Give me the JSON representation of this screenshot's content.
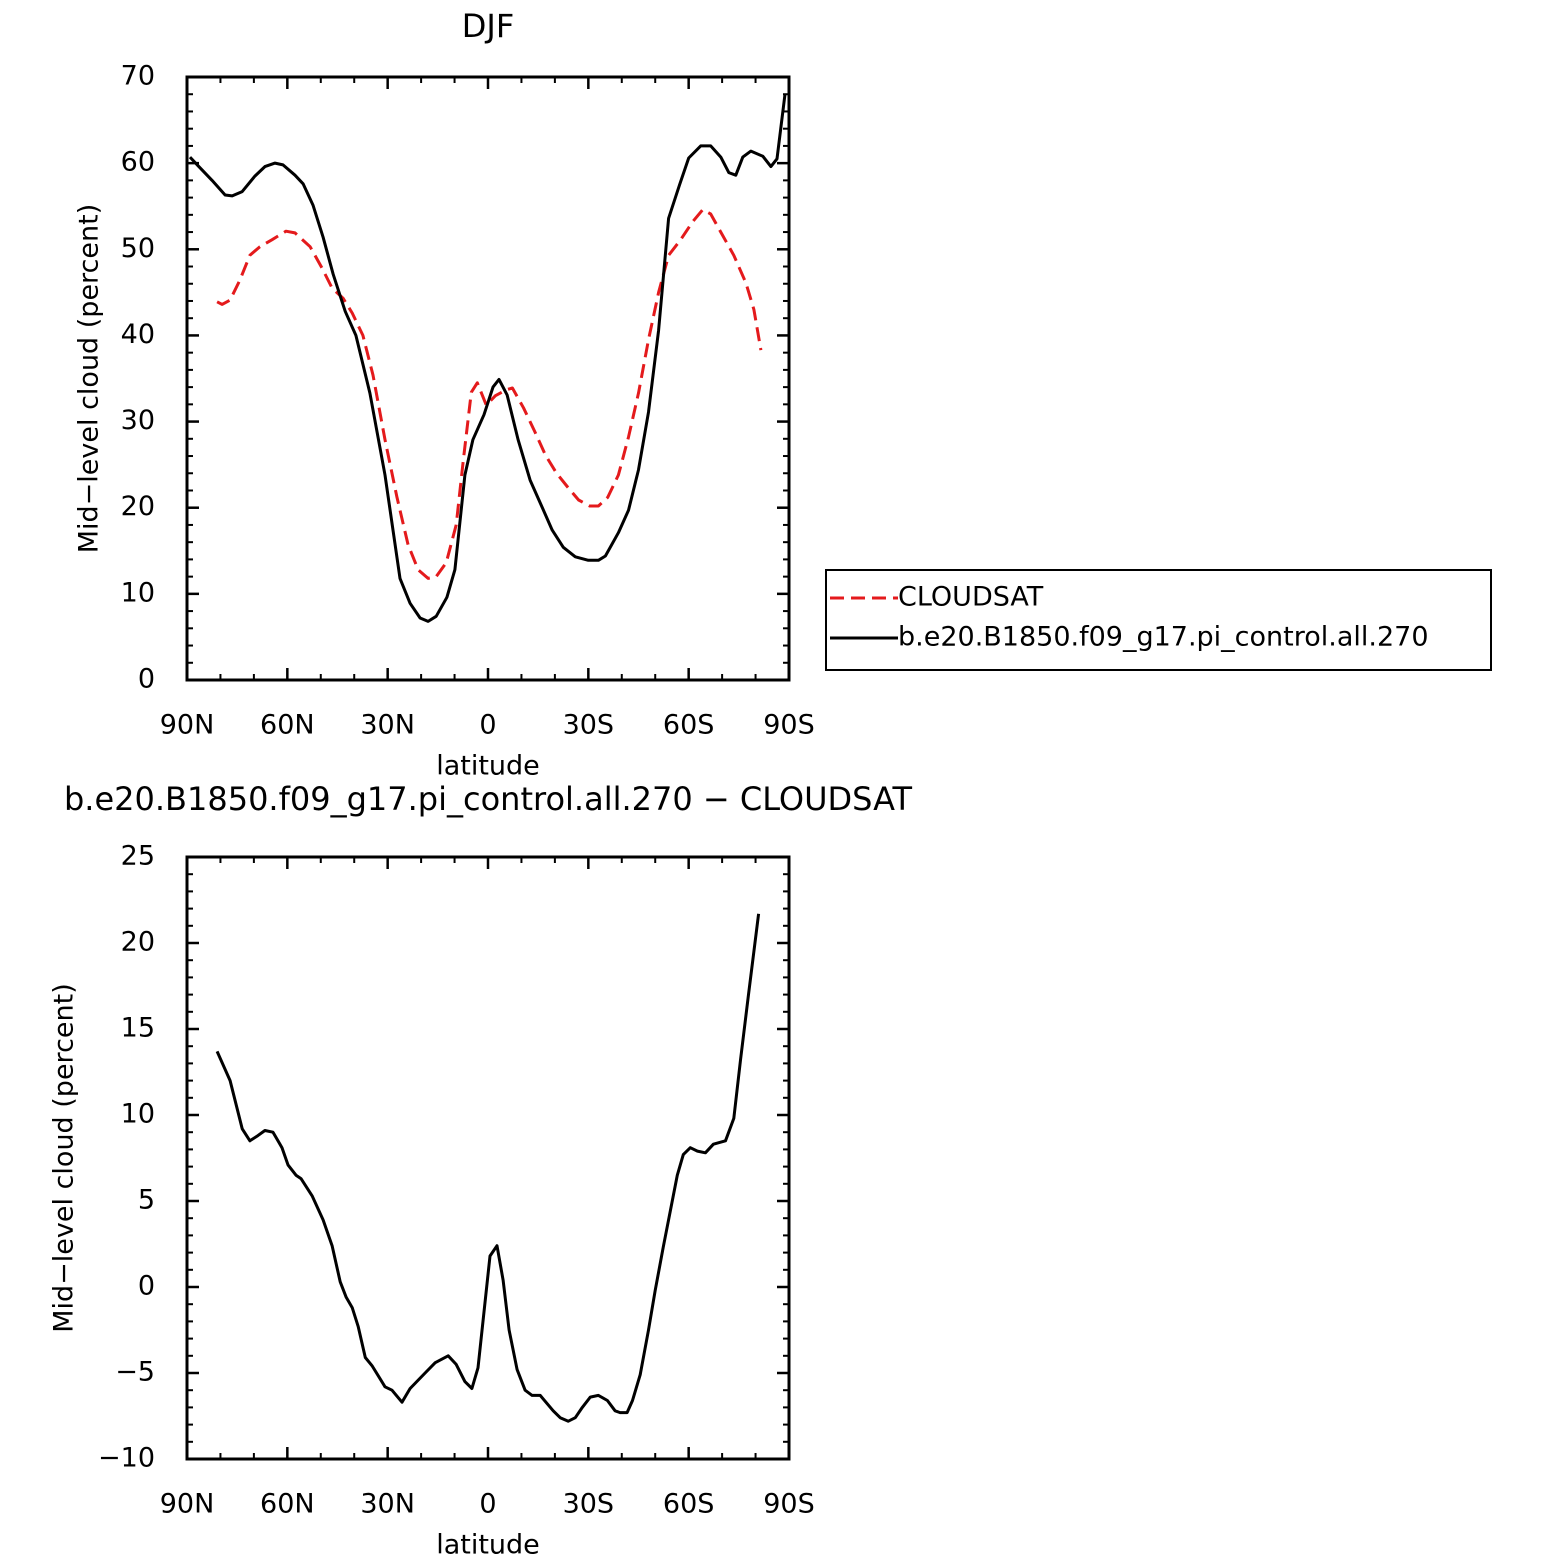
{
  "chart_data": [
    {
      "type": "line",
      "title": "DJF",
      "xlabel": "latitude",
      "ylabel": "Mid−level cloud (percent)",
      "xlim": [
        90,
        -90
      ],
      "xticks": [
        {
          "value": 90,
          "label": "90N"
        },
        {
          "value": 60,
          "label": "60N"
        },
        {
          "value": 30,
          "label": "30N"
        },
        0,
        {
          "value": -30,
          "label": "30S"
        },
        {
          "value": -60,
          "label": "60S"
        },
        {
          "value": -90,
          "label": "90S"
        }
      ],
      "xminorticks": [
        80,
        70,
        50,
        40,
        20,
        10,
        -10,
        -20,
        -40,
        -50,
        -70,
        -80
      ],
      "ylim": [
        0,
        70
      ],
      "yticks": [
        0,
        10,
        20,
        30,
        40,
        50,
        60,
        70
      ],
      "yminorticks": [
        2,
        4,
        6,
        8,
        12,
        14,
        16,
        18,
        22,
        24,
        26,
        28,
        32,
        34,
        36,
        38,
        42,
        44,
        46,
        48,
        52,
        54,
        56,
        58,
        62,
        64,
        66,
        68
      ],
      "legend": true,
      "series": [
        {
          "name": "CLOUDSAT",
          "color": "#e41a1c",
          "dash": true,
          "x": [
            81.0,
            79.5,
            77.1,
            74.2,
            71.2,
            68.2,
            64.6,
            60.4,
            57.7,
            53.2,
            49.6,
            46.6,
            43.3,
            40.6,
            37.4,
            34.4,
            30.8,
            27.2,
            23.9,
            20.9,
            17.9,
            15.5,
            12.5,
            9.5,
            7.4,
            5.0,
            3.2,
            0.5,
            -2.2,
            -5.5,
            -7.3,
            -10.6,
            -13.9,
            -17.2,
            -20.5,
            -23.8,
            -27.1,
            -30.4,
            -33.0,
            -35.8,
            -39.0,
            -42.0,
            -45.0,
            -48.0,
            -51.0,
            -54.0,
            -57.6,
            -61.2,
            -64.2,
            -66.6,
            -69.6,
            -73.5,
            -77.1,
            -79.5,
            -81.6
          ],
          "values": [
            43.9,
            43.6,
            44.1,
            46.4,
            49.3,
            50.3,
            51.1,
            52.1,
            51.9,
            50.3,
            47.8,
            45.5,
            44.3,
            42.6,
            40.0,
            35.4,
            27.9,
            21.2,
            15.7,
            12.8,
            11.8,
            12.0,
            13.6,
            18.0,
            25.5,
            33.4,
            34.5,
            31.9,
            33.0,
            33.7,
            33.9,
            31.6,
            28.9,
            26.1,
            24.0,
            22.4,
            20.9,
            20.2,
            20.2,
            21.2,
            23.8,
            28.2,
            33.3,
            39.5,
            45.0,
            49.3,
            51.1,
            53.2,
            54.6,
            54.1,
            52.0,
            49.3,
            46.1,
            43.0,
            38.3
          ]
        },
        {
          "name": "b.e20.B1850.f09_g17.pi_control.all.270",
          "color": "#000000",
          "dash": false,
          "x": [
            89.1,
            86.7,
            82.5,
            78.6,
            76.5,
            73.5,
            69.7,
            66.7,
            63.7,
            61.3,
            57.7,
            55.3,
            52.3,
            49.3,
            46.3,
            42.7,
            39.5,
            35.3,
            30.8,
            26.3,
            23.3,
            20.3,
            17.9,
            15.5,
            12.3,
            9.9,
            6.9,
            4.5,
            1.2,
            -1.5,
            -3.3,
            -5.7,
            -9.0,
            -12.6,
            -15.9,
            -19.2,
            -22.5,
            -26.1,
            -30.0,
            -33.0,
            -35.1,
            -39.0,
            -42.0,
            -45.0,
            -48.0,
            -51.0,
            -54.0,
            -57.3,
            -60.0,
            -63.6,
            -66.6,
            -69.6,
            -72.0,
            -74.1,
            -76.2,
            -78.6,
            -82.2,
            -84.6,
            -86.4,
            -88.8
          ],
          "values": [
            60.7,
            59.7,
            58.0,
            56.3,
            56.2,
            56.7,
            58.5,
            59.6,
            60.0,
            59.8,
            58.6,
            57.6,
            55.1,
            51.4,
            47.1,
            42.8,
            40.0,
            33.3,
            23.8,
            11.8,
            8.9,
            7.2,
            6.8,
            7.4,
            9.6,
            12.8,
            23.8,
            27.9,
            30.8,
            34.0,
            34.9,
            33.1,
            27.9,
            23.2,
            20.3,
            17.4,
            15.4,
            14.3,
            13.9,
            13.9,
            14.4,
            17.1,
            19.7,
            24.4,
            31.1,
            40.6,
            53.6,
            57.5,
            60.6,
            62.0,
            62.0,
            60.7,
            58.9,
            58.6,
            60.7,
            61.4,
            60.8,
            59.6,
            60.5,
            68.0
          ]
        }
      ]
    },
    {
      "type": "line",
      "title": "b.e20.B1850.f09_g17.pi_control.all.270 − CLOUDSAT",
      "xlabel": "latitude",
      "ylabel": "Mid−level cloud (percent)",
      "xlim": [
        90,
        -90
      ],
      "xticks": [
        {
          "value": 90,
          "label": "90N"
        },
        {
          "value": 60,
          "label": "60N"
        },
        {
          "value": 30,
          "label": "30N"
        },
        0,
        {
          "value": -30,
          "label": "30S"
        },
        {
          "value": -60,
          "label": "60S"
        },
        {
          "value": -90,
          "label": "90S"
        }
      ],
      "xminorticks": [
        80,
        70,
        50,
        40,
        20,
        10,
        -10,
        -20,
        -40,
        -50,
        -70,
        -80
      ],
      "ylim": [
        -10,
        25
      ],
      "yticks": [
        {
          "value": -10,
          "label": "−10"
        },
        {
          "value": -5,
          "label": "−5"
        },
        0,
        5,
        10,
        15,
        20,
        25
      ],
      "yminorticks": [
        -9,
        -8,
        -7,
        -6,
        -4,
        -3,
        -2,
        -1,
        1,
        2,
        3,
        4,
        6,
        7,
        8,
        9,
        11,
        12,
        13,
        14,
        16,
        17,
        18,
        19,
        21,
        22,
        23,
        24
      ],
      "legend": false,
      "series": [
        {
          "color": "#000000",
          "dash": false,
          "x": [
            81.0,
            77.1,
            73.5,
            71.2,
            68.8,
            66.7,
            64.3,
            61.6,
            59.8,
            57.4,
            55.9,
            52.6,
            49.3,
            46.6,
            44.2,
            42.4,
            40.6,
            38.8,
            36.7,
            34.6,
            30.8,
            28.7,
            25.7,
            23.3,
            18.8,
            15.8,
            11.9,
            9.5,
            6.9,
            4.8,
            3.0,
            -0.6,
            -2.7,
            -4.5,
            -6.3,
            -8.7,
            -11.1,
            -13.2,
            -15.6,
            -19.5,
            -21.6,
            -24.0,
            -26.1,
            -28.2,
            -30.6,
            -33.0,
            -35.7,
            -38.0,
            -39.5,
            -41.6,
            -43.2,
            -45.5,
            -48.0,
            -50.0,
            -52.4,
            -56.6,
            -58.4,
            -60.5,
            -62.6,
            -65.0,
            -67.4,
            -71.0,
            -73.5,
            -75.5,
            -77.9,
            -80.9
          ],
          "values": [
            13.7,
            12.0,
            9.2,
            8.5,
            8.8,
            9.1,
            9.0,
            8.1,
            7.1,
            6.5,
            6.3,
            5.3,
            3.9,
            2.4,
            0.3,
            -0.6,
            -1.2,
            -2.3,
            -4.1,
            -4.6,
            -5.8,
            -6.0,
            -6.7,
            -5.9,
            -5.0,
            -4.4,
            -4.0,
            -4.5,
            -5.5,
            -5.9,
            -4.7,
            1.8,
            2.4,
            0.4,
            -2.5,
            -4.8,
            -6.0,
            -6.3,
            -6.3,
            -7.2,
            -7.6,
            -7.8,
            -7.6,
            -7.0,
            -6.4,
            -6.3,
            -6.6,
            -7.2,
            -7.3,
            -7.3,
            -6.6,
            -5.1,
            -2.5,
            -0.2,
            2.3,
            6.5,
            7.7,
            8.1,
            7.9,
            7.8,
            8.3,
            8.5,
            9.8,
            13.2,
            17.0,
            21.7
          ]
        }
      ]
    }
  ]
}
